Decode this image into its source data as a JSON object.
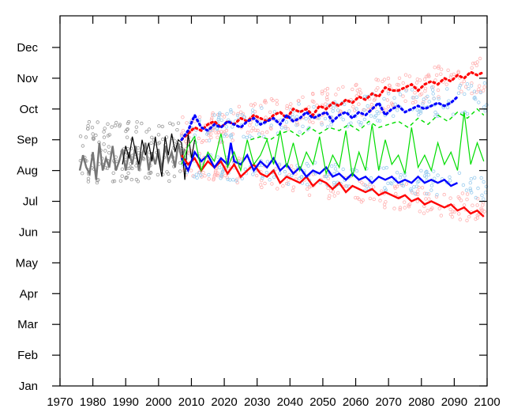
{
  "chart_data": {
    "type": "line",
    "title": "",
    "xlabel": "",
    "ylabel": "",
    "xlim": [
      1970,
      2100
    ],
    "ylim": [
      0,
      11
    ],
    "x_ticks": [
      1970,
      1980,
      1990,
      2000,
      2010,
      2020,
      2030,
      2040,
      2050,
      2060,
      2070,
      2080,
      2090,
      2100
    ],
    "x_tick_labels": [
      "1970",
      "1980",
      "1990",
      "2000",
      "2010",
      "2020",
      "2030",
      "2040",
      "2050",
      "2060",
      "2070",
      "2080",
      "2090",
      "2100"
    ],
    "y_ticks": [
      0,
      1,
      2,
      3,
      4,
      5,
      6,
      7,
      8,
      9,
      10,
      11
    ],
    "y_tick_labels": [
      "Jan",
      "Feb",
      "Mar",
      "Apr",
      "May",
      "Jun",
      "Jul",
      "Aug",
      "Sep",
      "Oct",
      "Nov",
      "Dec"
    ],
    "grid": false,
    "legend": "none",
    "series": [
      {
        "color": "#777777",
        "style": "solid",
        "x": [
          1976,
          1977,
          1978,
          1979,
          1980,
          1981,
          1982,
          1983,
          1984,
          1985,
          1986,
          1987,
          1988,
          1989,
          1990,
          1991,
          1992,
          1993,
          1994,
          1995,
          1996,
          1997,
          1998,
          1999,
          2000,
          2001,
          2002,
          2003,
          2004,
          2005,
          2006,
          2007,
          2008
        ],
        "y": [
          7.0,
          7.5,
          7.1,
          6.9,
          7.6,
          6.7,
          7.9,
          7.0,
          7.4,
          7.1,
          7.8,
          7.0,
          7.3,
          7.7,
          7.0,
          7.6,
          7.2,
          7.8,
          7.0,
          7.5,
          7.9,
          7.0,
          7.6,
          7.2,
          7.7,
          7.0,
          7.8,
          7.3,
          7.6,
          7.1,
          7.9,
          7.4,
          7.7
        ]
      },
      {
        "color": "#000000",
        "style": "solid",
        "x": [
          1989,
          1990,
          1991,
          1992,
          1993,
          1994,
          1995,
          1996,
          1997,
          1998,
          1999,
          2000,
          2001,
          2002,
          2003,
          2004,
          2005,
          2006,
          2007,
          2008,
          2009,
          2010,
          2011
        ],
        "y": [
          7.2,
          7.8,
          7.4,
          8.1,
          7.6,
          7.2,
          8.0,
          7.5,
          7.9,
          7.3,
          8.1,
          7.4,
          6.8,
          8.1,
          7.5,
          8.2,
          7.6,
          8.0,
          7.9,
          6.7,
          8.2,
          7.4,
          8.0
        ]
      },
      {
        "color": "#ff0000",
        "style": "solid",
        "x": [
          2007,
          2009,
          2011,
          2013,
          2015,
          2017,
          2019,
          2021,
          2023,
          2025,
          2027,
          2029,
          2031,
          2033,
          2035,
          2037,
          2039,
          2041,
          2043,
          2045,
          2047,
          2049,
          2051,
          2053,
          2055,
          2057,
          2059,
          2061,
          2063,
          2065,
          2067,
          2069,
          2071,
          2073,
          2075,
          2077,
          2079,
          2081,
          2083,
          2085,
          2087,
          2089,
          2091,
          2093,
          2095,
          2097,
          2099
        ],
        "y": [
          7.5,
          7.2,
          7.4,
          7.0,
          7.3,
          7.1,
          7.3,
          6.9,
          7.2,
          6.8,
          7.0,
          7.2,
          6.9,
          6.8,
          7.0,
          6.6,
          6.8,
          6.7,
          6.6,
          6.8,
          6.5,
          6.7,
          6.6,
          6.4,
          6.6,
          6.3,
          6.5,
          6.4,
          6.3,
          6.4,
          6.2,
          6.3,
          6.2,
          6.1,
          6.2,
          6.0,
          6.1,
          5.9,
          6.0,
          5.9,
          5.8,
          5.9,
          5.7,
          5.8,
          5.6,
          5.7,
          5.5
        ]
      },
      {
        "color": "#0000ff",
        "style": "solid",
        "x": [
          2007,
          2009,
          2011,
          2013,
          2015,
          2017,
          2019,
          2021,
          2022,
          2023,
          2025,
          2027,
          2029,
          2031,
          2033,
          2035,
          2037,
          2039,
          2041,
          2043,
          2045,
          2047,
          2049,
          2051,
          2053,
          2055,
          2057,
          2059,
          2061,
          2063,
          2065,
          2067,
          2069,
          2071,
          2073,
          2075,
          2077,
          2079,
          2081,
          2083,
          2085,
          2087,
          2089,
          2091
        ],
        "y": [
          7.4,
          7.0,
          7.6,
          7.3,
          7.5,
          7.1,
          7.4,
          7.2,
          7.9,
          7.3,
          7.2,
          7.5,
          7.0,
          7.3,
          7.1,
          7.4,
          7.0,
          7.2,
          6.9,
          7.1,
          6.8,
          7.0,
          6.9,
          7.1,
          6.8,
          6.9,
          6.7,
          6.9,
          6.7,
          6.8,
          6.6,
          6.8,
          6.7,
          6.8,
          6.6,
          6.7,
          6.6,
          6.8,
          6.6,
          6.7,
          6.6,
          6.7,
          6.5,
          6.6
        ]
      },
      {
        "color": "#00dd00",
        "style": "solid",
        "x": [
          2007,
          2009,
          2011,
          2013,
          2015,
          2017,
          2019,
          2021,
          2023,
          2025,
          2027,
          2029,
          2031,
          2033,
          2035,
          2037,
          2039,
          2041,
          2043,
          2045,
          2047,
          2049,
          2051,
          2053,
          2055,
          2057,
          2059,
          2061,
          2063,
          2065,
          2067,
          2069,
          2071,
          2073,
          2075,
          2077,
          2079,
          2081,
          2083,
          2085,
          2087,
          2089,
          2091,
          2093,
          2095,
          2097,
          2099
        ],
        "y": [
          7.2,
          7.8,
          8.1,
          7.0,
          7.6,
          7.3,
          8.2,
          7.1,
          7.6,
          7.0,
          8.0,
          7.2,
          7.5,
          8.0,
          7.2,
          8.3,
          7.1,
          7.9,
          7.0,
          7.6,
          7.2,
          8.1,
          6.9,
          7.5,
          7.1,
          8.3,
          6.8,
          7.6,
          7.0,
          8.5,
          7.0,
          8.0,
          7.2,
          7.5,
          6.9,
          8.4,
          7.1,
          7.5,
          7.0,
          7.9,
          7.2,
          7.6,
          7.0,
          8.9,
          7.2,
          7.9,
          7.3
        ]
      },
      {
        "color": "#ff0000",
        "style": "dotted",
        "x": [
          2007,
          2009,
          2011,
          2013,
          2015,
          2017,
          2019,
          2021,
          2023,
          2025,
          2027,
          2029,
          2031,
          2033,
          2035,
          2037,
          2039,
          2041,
          2043,
          2045,
          2047,
          2049,
          2051,
          2053,
          2055,
          2057,
          2059,
          2061,
          2063,
          2065,
          2067,
          2069,
          2071,
          2073,
          2075,
          2077,
          2079,
          2081,
          2083,
          2085,
          2087,
          2089,
          2091,
          2093,
          2095,
          2097,
          2099
        ],
        "y": [
          8.0,
          8.2,
          8.4,
          8.3,
          8.5,
          8.6,
          8.4,
          8.6,
          8.5,
          8.7,
          8.6,
          8.8,
          8.7,
          8.6,
          8.8,
          8.9,
          8.7,
          9.0,
          8.9,
          9.0,
          8.8,
          9.1,
          9.0,
          9.2,
          9.1,
          9.3,
          9.2,
          9.4,
          9.3,
          9.5,
          9.4,
          9.7,
          9.6,
          9.6,
          9.7,
          9.8,
          9.6,
          9.8,
          9.9,
          9.8,
          10.0,
          9.9,
          10.1,
          10.0,
          10.2,
          10.1,
          10.2
        ]
      },
      {
        "color": "#0000ff",
        "style": "dotted",
        "x": [
          2007,
          2009,
          2011,
          2013,
          2015,
          2017,
          2019,
          2021,
          2023,
          2025,
          2027,
          2029,
          2031,
          2033,
          2035,
          2037,
          2039,
          2041,
          2043,
          2045,
          2047,
          2049,
          2051,
          2053,
          2055,
          2057,
          2059,
          2061,
          2063,
          2065,
          2067,
          2069,
          2071,
          2073,
          2075,
          2077,
          2079,
          2081,
          2083,
          2085,
          2087,
          2089,
          2091
        ],
        "y": [
          8.0,
          8.3,
          8.8,
          8.4,
          8.3,
          8.5,
          8.4,
          8.6,
          8.5,
          8.4,
          8.6,
          8.7,
          8.5,
          8.6,
          8.7,
          8.5,
          8.8,
          8.6,
          8.7,
          8.9,
          8.7,
          8.8,
          8.9,
          8.6,
          8.8,
          8.9,
          8.7,
          8.9,
          8.8,
          9.0,
          9.2,
          8.8,
          9.0,
          9.1,
          8.9,
          9.0,
          9.1,
          9.0,
          9.1,
          9.2,
          9.1,
          9.2,
          9.4
        ]
      },
      {
        "color": "#00dd00",
        "style": "dashed",
        "x": [
          2028,
          2031,
          2034,
          2037,
          2040,
          2043,
          2046,
          2049,
          2052,
          2055,
          2058,
          2061,
          2064,
          2067,
          2070,
          2073,
          2076,
          2079,
          2082,
          2085,
          2088,
          2091,
          2094,
          2097,
          2099
        ],
        "y": [
          8.0,
          8.1,
          8.0,
          8.2,
          8.3,
          8.1,
          8.4,
          8.2,
          8.4,
          8.3,
          8.5,
          8.3,
          8.6,
          8.4,
          8.5,
          8.6,
          8.4,
          8.7,
          8.5,
          8.8,
          8.6,
          8.9,
          8.7,
          9.0,
          8.8
        ]
      }
    ]
  }
}
